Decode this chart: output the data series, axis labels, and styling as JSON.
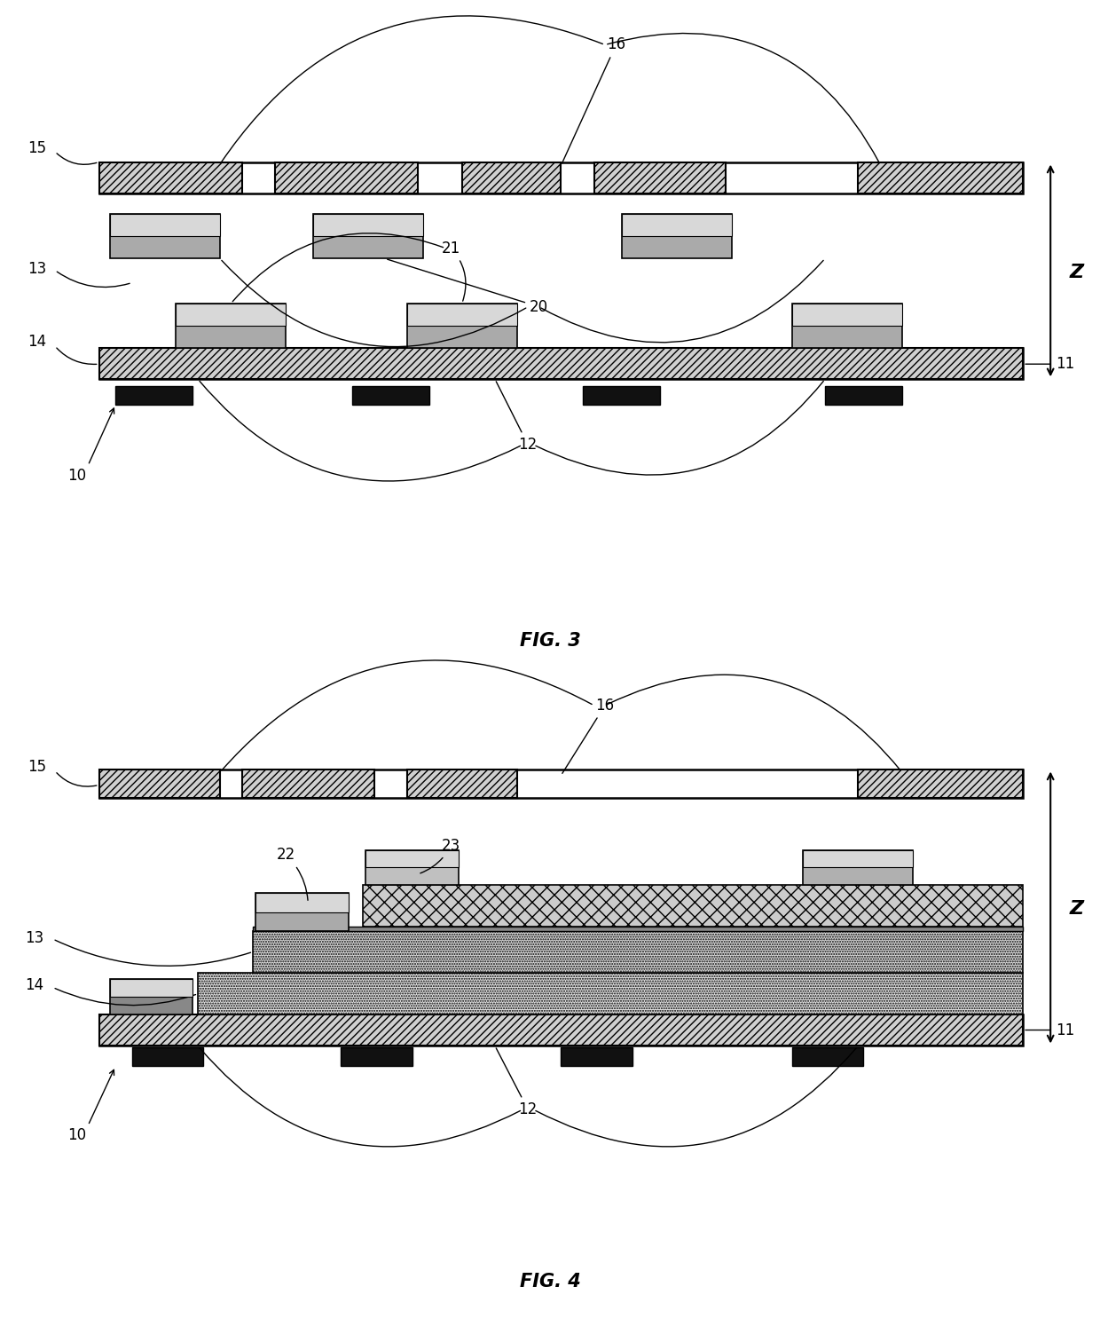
{
  "background": "#ffffff",
  "fig3_title": "FIG. 3",
  "fig4_title": "FIG. 4",
  "lw_plate": 1.8,
  "lw_block": 1.2,
  "hatch_color": "#d8d8d8",
  "block_gray": "#b8b8b8",
  "block_dark": "#888888",
  "black_fill": "#111111"
}
